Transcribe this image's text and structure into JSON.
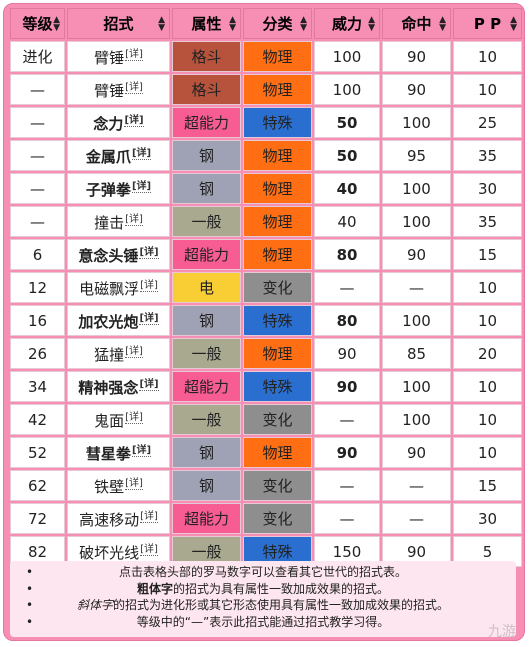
{
  "headers": [
    "等级",
    "招式",
    "属性",
    "分类",
    "威力",
    "命中",
    "P P"
  ],
  "detail_link": "[详]",
  "type_colors": {
    "格斗": "#b7533d",
    "超能力": "#f75c93",
    "钢": "#9fa2b4",
    "一般": "#a9a990",
    "电": "#f9ce35",
    "物理": "#ff6e12",
    "特殊": "#2a6fcf",
    "变化": "#8e8e8e"
  },
  "rows": [
    {
      "level": "进化",
      "name": "臂锤",
      "bold": false,
      "type": "格斗",
      "category": "物理",
      "power": "100",
      "power_bold": false,
      "accuracy": "90",
      "pp": "10"
    },
    {
      "level": "—",
      "name": "臂锤",
      "bold": false,
      "type": "格斗",
      "category": "物理",
      "power": "100",
      "power_bold": false,
      "accuracy": "90",
      "pp": "10"
    },
    {
      "level": "—",
      "name": "念力",
      "bold": true,
      "type": "超能力",
      "category": "特殊",
      "power": "50",
      "power_bold": true,
      "accuracy": "100",
      "pp": "25"
    },
    {
      "level": "—",
      "name": "金属爪",
      "bold": true,
      "type": "钢",
      "category": "物理",
      "power": "50",
      "power_bold": true,
      "accuracy": "95",
      "pp": "35"
    },
    {
      "level": "—",
      "name": "子弹拳",
      "bold": true,
      "type": "钢",
      "category": "物理",
      "power": "40",
      "power_bold": true,
      "accuracy": "100",
      "pp": "30"
    },
    {
      "level": "—",
      "name": "撞击",
      "bold": false,
      "type": "一般",
      "category": "物理",
      "power": "40",
      "power_bold": false,
      "accuracy": "100",
      "pp": "35"
    },
    {
      "level": "6",
      "name": "意念头锤",
      "bold": true,
      "type": "超能力",
      "category": "物理",
      "power": "80",
      "power_bold": true,
      "accuracy": "90",
      "pp": "15"
    },
    {
      "level": "12",
      "name": "电磁飘浮",
      "bold": false,
      "type": "电",
      "category": "变化",
      "power": "—",
      "power_bold": false,
      "accuracy": "—",
      "pp": "10"
    },
    {
      "level": "16",
      "name": "加农光炮",
      "bold": true,
      "type": "钢",
      "category": "特殊",
      "power": "80",
      "power_bold": true,
      "accuracy": "100",
      "pp": "10"
    },
    {
      "level": "26",
      "name": "猛撞",
      "bold": false,
      "type": "一般",
      "category": "物理",
      "power": "90",
      "power_bold": false,
      "accuracy": "85",
      "pp": "20"
    },
    {
      "level": "34",
      "name": "精神强念",
      "bold": true,
      "type": "超能力",
      "category": "特殊",
      "power": "90",
      "power_bold": true,
      "accuracy": "100",
      "pp": "10"
    },
    {
      "level": "42",
      "name": "鬼面",
      "bold": false,
      "type": "一般",
      "category": "变化",
      "power": "—",
      "power_bold": false,
      "accuracy": "100",
      "pp": "10"
    },
    {
      "level": "52",
      "name": "彗星拳",
      "bold": true,
      "type": "钢",
      "category": "物理",
      "power": "90",
      "power_bold": true,
      "accuracy": "90",
      "pp": "10"
    },
    {
      "level": "62",
      "name": "铁壁",
      "bold": false,
      "type": "钢",
      "category": "变化",
      "power": "—",
      "power_bold": false,
      "accuracy": "—",
      "pp": "15"
    },
    {
      "level": "72",
      "name": "高速移动",
      "bold": false,
      "type": "超能力",
      "category": "变化",
      "power": "—",
      "power_bold": false,
      "accuracy": "—",
      "pp": "30"
    },
    {
      "level": "82",
      "name": "破坏光线",
      "bold": false,
      "type": "一般",
      "category": "特殊",
      "power": "150",
      "power_bold": false,
      "accuracy": "90",
      "pp": "5"
    }
  ],
  "notes": {
    "bullet": "•",
    "line1": "点击表格头部的罗马数字可以查看其它世代的招式表。",
    "line2_bold": "粗体字",
    "line2_rest": "的招式为具有属性一致加成效果的招式。",
    "line3_italic": "斜体字",
    "line3_rest": "的招式为进化形或其它形态使用具有属性一致加成效果的招式。",
    "line4": "等级中的“—”表示此招式能通过招式教学习得。"
  },
  "watermark": "九游"
}
